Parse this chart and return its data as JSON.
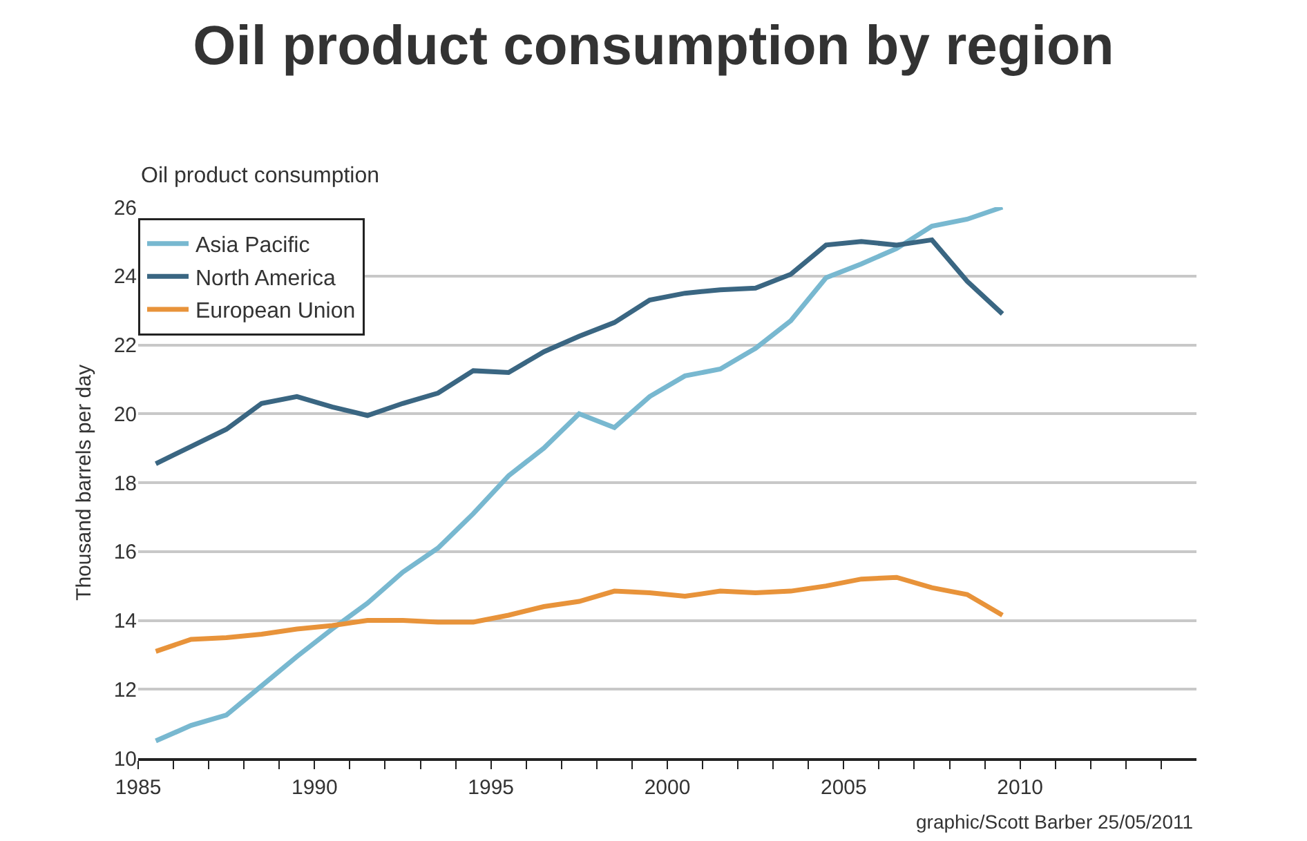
{
  "chart_data": {
    "type": "line",
    "title": "Oil product consumption by region",
    "subtitle": "Oil product consumption",
    "ylabel": "Thousand barrels per day",
    "x": [
      1985.5,
      1986.5,
      1987.5,
      1988.5,
      1989.5,
      1990.5,
      1991.5,
      1992.5,
      1993.5,
      1994.5,
      1995.5,
      1996.5,
      1997.5,
      1998.5,
      1999.5,
      2000.5,
      2001.5,
      2002.5,
      2003.5,
      2004.5,
      2005.5,
      2006.5,
      2007.5,
      2008.5,
      2009.5
    ],
    "series": [
      {
        "name": "Asia Pacific",
        "color": "#78b8d0",
        "values": [
          10.5,
          10.95,
          11.25,
          12.1,
          12.95,
          13.75,
          14.5,
          15.4,
          16.1,
          17.1,
          18.2,
          19.0,
          20.0,
          19.6,
          20.5,
          21.1,
          21.3,
          21.9,
          22.7,
          23.95,
          24.35,
          24.8,
          25.45,
          25.65,
          26.0
        ]
      },
      {
        "name": "North America",
        "color": "#3a6682",
        "values": [
          18.55,
          19.05,
          19.55,
          20.3,
          20.5,
          20.2,
          19.95,
          20.3,
          20.6,
          21.25,
          21.2,
          21.8,
          22.25,
          22.65,
          23.3,
          23.5,
          23.6,
          23.65,
          24.05,
          24.9,
          25.0,
          24.9,
          25.05,
          23.85,
          22.9
        ]
      },
      {
        "name": "European Union",
        "color": "#e8933a",
        "values": [
          13.1,
          13.45,
          13.5,
          13.6,
          13.75,
          13.85,
          14.0,
          14.0,
          13.95,
          13.95,
          14.15,
          14.4,
          14.55,
          14.85,
          14.8,
          14.7,
          14.85,
          14.8,
          14.85,
          15.0,
          15.2,
          15.25,
          14.95,
          14.75,
          14.15
        ]
      }
    ],
    "xlim": [
      1985,
      2015
    ],
    "xticks": [
      1985,
      {
        "value": 1986,
        "label": null
      },
      {
        "value": 1987,
        "label": null
      },
      {
        "value": 1988,
        "label": null
      },
      {
        "value": 1989,
        "label": null
      },
      1990,
      {
        "value": 1991,
        "label": null
      },
      {
        "value": 1992,
        "label": null
      },
      {
        "value": 1993,
        "label": null
      },
      {
        "value": 1994,
        "label": null
      },
      1995,
      {
        "value": 1996,
        "label": null
      },
      {
        "value": 1997,
        "label": null
      },
      {
        "value": 1998,
        "label": null
      },
      {
        "value": 1999,
        "label": null
      },
      2000,
      {
        "value": 2001,
        "label": null
      },
      {
        "value": 2002,
        "label": null
      },
      {
        "value": 2003,
        "label": null
      },
      {
        "value": 2004,
        "label": null
      },
      2005,
      {
        "value": 2006,
        "label": null
      },
      {
        "value": 2007,
        "label": null
      },
      {
        "value": 2008,
        "label": null
      },
      {
        "value": 2009,
        "label": null
      },
      2010,
      {
        "value": 2011,
        "label": null
      },
      {
        "value": 2012,
        "label": null
      },
      {
        "value": 2013,
        "label": null
      },
      {
        "value": 2014,
        "label": null
      }
    ],
    "ylim": [
      10,
      26
    ],
    "yticks": [
      10,
      12,
      14,
      16,
      18,
      20,
      22,
      24,
      26
    ],
    "grid": "y",
    "legend": "top left",
    "marker": "none",
    "line_style": "solid",
    "annotations": [
      "graphic/Scott Barber 25/05/2011"
    ]
  }
}
